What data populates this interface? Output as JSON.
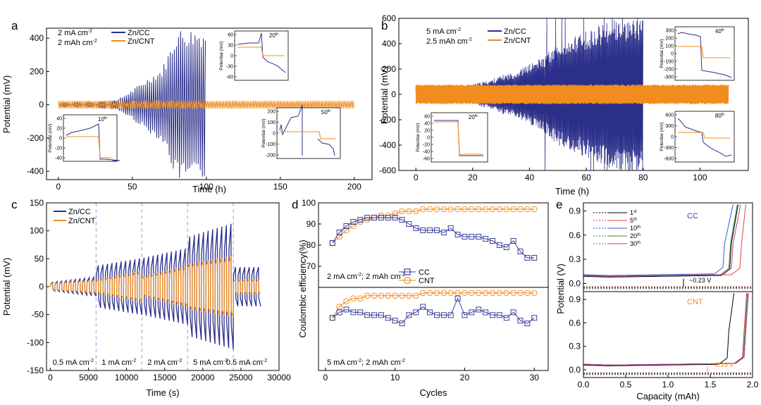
{
  "colors": {
    "cc": "#2b2f8a",
    "cnt": "#f28c1e",
    "dash": "#9aa0d8",
    "axis": "#000000"
  },
  "chart_data": [
    {
      "id": "a",
      "type": "line",
      "panel_label": "a",
      "xlabel": "Time (h)",
      "ylabel": "Potential (mV)",
      "xlim": [
        -8,
        212
      ],
      "ylim": [
        -450,
        460
      ],
      "xticks": [
        0,
        50,
        100,
        150,
        200
      ],
      "yticks": [
        -400,
        -200,
        0,
        200,
        400
      ],
      "annotations": [
        "2 mA cm",
        "2 mAh cm"
      ],
      "ann_sup": "-2",
      "legend": {
        "cc": "Zn/CC",
        "cnt": "Zn/CNT"
      },
      "series": [
        {
          "name": "Zn/CC",
          "x": [
            0,
            20,
            40,
            50,
            60,
            70,
            75,
            80,
            90,
            100
          ],
          "amplitude": [
            10,
            14,
            32,
            90,
            160,
            220,
            330,
            460,
            460,
            460
          ]
        },
        {
          "name": "Zn/CNT",
          "x": [
            0,
            200
          ],
          "amplitude": [
            25,
            25
          ]
        }
      ],
      "insets": [
        {
          "id": "a1",
          "cycle": "10",
          "cycle_sup": "th",
          "ylabel": "Potential (mV)",
          "yticks": [
            "40",
            "20",
            "0",
            "-20",
            "-40"
          ]
        },
        {
          "id": "a2",
          "cycle": "20",
          "cycle_sup": "th",
          "ylabel": "Potential (mV)",
          "yticks": [
            "60",
            "30",
            "0",
            "-30",
            "-60"
          ]
        },
        {
          "id": "a3",
          "cycle": "50",
          "cycle_sup": "th",
          "ylabel": "Potential (mV)",
          "yticks": [
            "200",
            "100",
            "0",
            "-100",
            "-200"
          ]
        }
      ]
    },
    {
      "id": "b",
      "type": "line",
      "panel_label": "b",
      "xlabel": "Time (h)",
      "ylabel": "Potential (mV)",
      "xlim": [
        -6,
        117
      ],
      "ylim": [
        -600,
        600
      ],
      "xticks": [
        0,
        20,
        40,
        60,
        80,
        100
      ],
      "yticks": [
        -600,
        -400,
        -200,
        0,
        200,
        400,
        600
      ],
      "annotations": [
        "5 mA cm",
        "2.5 mAh cm"
      ],
      "ann_sup": "-2",
      "legend": {
        "cc": "Zn/CC",
        "cnt": "Zn/CNT"
      },
      "series": [
        {
          "name": "Zn/CC",
          "x": [
            0,
            10,
            20,
            27,
            30,
            35,
            40,
            45,
            50,
            60,
            70,
            80
          ],
          "amplitude": [
            55,
            60,
            80,
            120,
            150,
            180,
            240,
            300,
            400,
            500,
            600,
            600
          ]
        },
        {
          "name": "Zn/CNT",
          "x": [
            0,
            110
          ],
          "amplitude": [
            78,
            78
          ]
        }
      ],
      "insets": [
        {
          "id": "b1",
          "cycle": "20",
          "cycle_sup": "th",
          "ylabel": "Potential (mV)",
          "yticks": [
            "60",
            "40",
            "20",
            "0",
            "-20",
            "-40",
            "-60"
          ]
        },
        {
          "id": "b2",
          "cycle": "40",
          "cycle_sup": "th",
          "ylabel": "Potential (mV)",
          "yticks": [
            "300",
            "200",
            "100",
            "0",
            "-100",
            "-200",
            "-300"
          ]
        },
        {
          "id": "b3",
          "cycle": "80",
          "cycle_sup": "th",
          "ylabel": "Potential (mV)",
          "yticks": [
            "600",
            "300",
            "0",
            "-300",
            "-600"
          ]
        }
      ]
    },
    {
      "id": "c",
      "type": "line",
      "panel_label": "c",
      "xlabel": "Time (s)",
      "ylabel": "Potential (mV)",
      "xlim": [
        -500,
        30000
      ],
      "ylim": [
        -150,
        150
      ],
      "xticks": [
        0,
        5000,
        10000,
        15000,
        20000,
        25000,
        30000
      ],
      "yticks": [
        -150,
        -100,
        -50,
        0,
        50,
        100,
        150
      ],
      "legend": {
        "cc": "Zn/CC",
        "cnt": "Zn/CNT"
      },
      "dividers": [
        6000,
        12000,
        18000,
        24000
      ],
      "segments": [
        {
          "start": 0,
          "end": 6000,
          "label": "0.5 mA cm",
          "cc": [
            8,
            18
          ],
          "cnt": [
            6,
            12
          ]
        },
        {
          "start": 6000,
          "end": 12000,
          "label": "1 mA cm",
          "cc": [
            38,
            52
          ],
          "cnt": [
            12,
            28
          ]
        },
        {
          "start": 12000,
          "end": 18000,
          "label": "2 mA cm",
          "cc": [
            52,
            70
          ],
          "cnt": [
            18,
            38
          ]
        },
        {
          "start": 18000,
          "end": 24000,
          "label": "5 mA cm",
          "cc": [
            90,
            115
          ],
          "cnt": [
            42,
            56
          ]
        },
        {
          "start": 24000,
          "end": 27500,
          "label": "0.5 mA cm",
          "cc": [
            35,
            35
          ],
          "cnt": [
            12,
            12
          ]
        }
      ],
      "seg_sup": "-2"
    },
    {
      "id": "d",
      "type": "line",
      "panel_label": "d",
      "xlabel": "Cycles",
      "ylabel": "Coulombic efficiency(%)",
      "xticks": [
        0,
        10,
        20,
        30
      ],
      "legend": {
        "cc": "CC",
        "cnt": "CNT"
      },
      "top": {
        "label": "2 mA cm",
        "label_mid": "; 2 mAh cm",
        "sup": "-2",
        "ylim": [
          60,
          100
        ],
        "yticks": [
          70,
          80,
          90,
          100
        ],
        "cycles": [
          1,
          2,
          3,
          4,
          5,
          6,
          7,
          8,
          9,
          10,
          11,
          12,
          13,
          14,
          15,
          16,
          17,
          18,
          19,
          20,
          21,
          22,
          23,
          24,
          25,
          26,
          27,
          28,
          29,
          30
        ],
        "cc": [
          81,
          86,
          89,
          91,
          92,
          93,
          93,
          93,
          93,
          93,
          92,
          90,
          88,
          87,
          87,
          87,
          86,
          88,
          85,
          84,
          84,
          84,
          83,
          82,
          80,
          79,
          82,
          77,
          74,
          74
        ],
        "cnt": [
          81,
          84,
          87,
          89,
          91,
          92,
          93,
          94,
          94,
          95,
          96,
          96,
          96,
          97,
          97,
          97,
          97,
          97,
          97,
          97,
          97,
          97,
          97,
          97,
          97,
          97,
          97,
          97,
          97,
          97
        ]
      },
      "bottom": {
        "label": "5 mA cm",
        "label_mid": "; 2 mAh cm",
        "sup": "-2",
        "ylim": [
          70,
          100
        ],
        "cycles": [
          1,
          2,
          3,
          4,
          5,
          6,
          7,
          8,
          9,
          10,
          11,
          12,
          13,
          14,
          15,
          16,
          17,
          18,
          19,
          20,
          21,
          22,
          23,
          24,
          25,
          26,
          27,
          28,
          29,
          30
        ],
        "cc": [
          89,
          91,
          92,
          91,
          91,
          90,
          90,
          90,
          89,
          88,
          87,
          90,
          91,
          93,
          91,
          90,
          90,
          90,
          96,
          90,
          91,
          92,
          91,
          90,
          90,
          89,
          91,
          88,
          87,
          89
        ],
        "cnt": [
          89,
          93,
          95,
          96,
          96,
          97,
          97,
          97,
          97,
          97,
          97,
          97,
          97,
          98,
          98,
          98,
          98,
          98,
          98,
          98,
          98,
          98,
          98,
          98,
          98,
          98,
          98,
          98,
          98,
          98
        ]
      }
    },
    {
      "id": "e",
      "type": "line",
      "panel_label": "e",
      "xlabel": "Capacity (mAh)",
      "ylabel": "Potential (V)",
      "xlim": [
        0,
        2.0
      ],
      "ylim": [
        -0.1,
        1.0
      ],
      "xticks": [
        0.0,
        0.5,
        1.0,
        1.5,
        2.0
      ],
      "yticks": [
        0.0,
        0.3,
        0.6,
        0.9
      ],
      "legend": [
        {
          "num": "1",
          "sup": "st",
          "color": "#000000"
        },
        {
          "num": "5",
          "sup": "th",
          "color": "#e0463c"
        },
        {
          "num": "10",
          "sup": "th",
          "color": "#3a5bd0"
        },
        {
          "num": "20",
          "sup": "th",
          "color": "#2e8b3a"
        },
        {
          "num": "30",
          "sup": "th",
          "color": "#c0398c"
        }
      ],
      "top_label": "CC",
      "bottom_label": "CNT",
      "top_overpotential": "~0.23 V",
      "bottom_overpotential": "~0.13 V",
      "top_series": [
        {
          "plateau": 0.08,
          "rise": 1.73,
          "end": 1.83
        },
        {
          "plateau": 0.09,
          "rise": 1.85,
          "end": 1.92
        },
        {
          "plateau": 0.1,
          "rise": 1.65,
          "end": 1.77
        },
        {
          "plateau": 0.09,
          "rise": 1.72,
          "end": 1.82
        },
        {
          "plateau": 0.09,
          "rise": 1.75,
          "end": 1.86
        }
      ],
      "bottom_series": [
        {
          "plateau": 0.05,
          "rise": 1.7,
          "end": 1.78
        },
        {
          "plateau": 0.06,
          "rise": 1.88,
          "end": 1.93
        },
        {
          "plateau": 0.06,
          "rise": 1.9,
          "end": 1.95
        },
        {
          "plateau": 0.06,
          "rise": 1.89,
          "end": 1.94
        },
        {
          "plateau": 0.06,
          "rise": 1.9,
          "end": 1.95
        }
      ]
    }
  ]
}
